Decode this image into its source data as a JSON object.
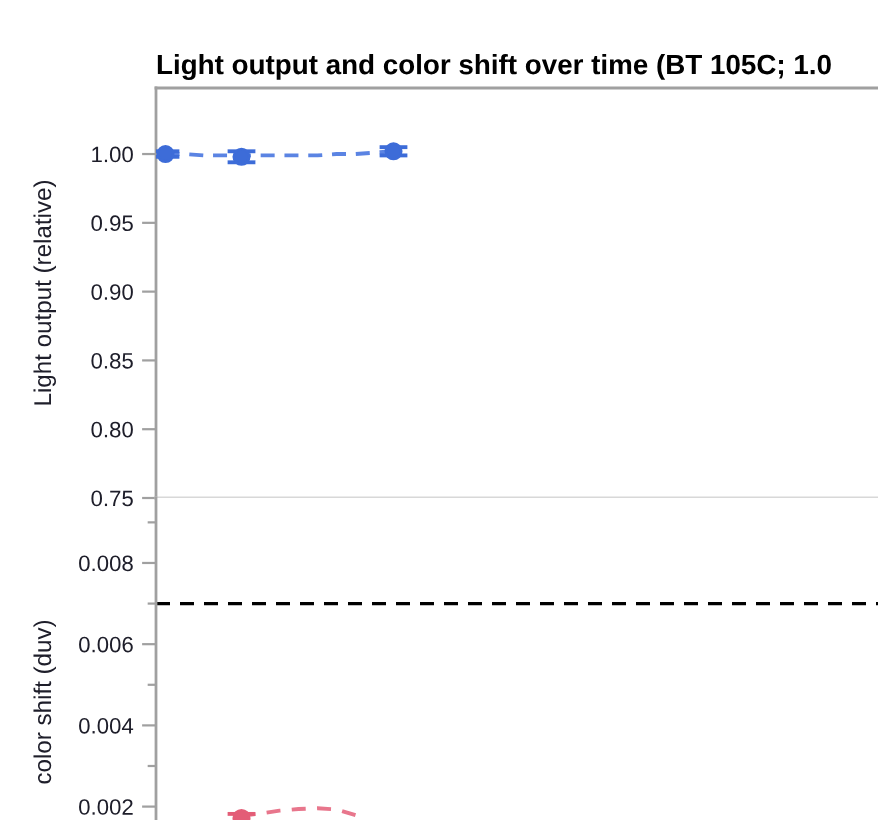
{
  "chart_data": [
    {
      "type": "line",
      "title": "Light output and color shift over time (BT 105C; 1.0",
      "ylabel": "Light output (relative)",
      "categories": [
        null,
        null,
        null,
        null,
        null,
        null,
        null,
        null,
        null,
        null,
        null,
        null,
        null,
        null,
        null,
        null,
        null,
        null,
        null,
        null,
        null,
        null,
        null,
        null,
        null,
        null,
        null,
        null,
        null,
        null,
        null,
        null,
        null,
        null,
        null,
        null,
        null,
        null
      ],
      "ylim": [
        0.75,
        1.048
      ],
      "yticks": [
        {
          "value": 0.75,
          "label": "0.75"
        },
        {
          "value": 0.8,
          "label": "0.80"
        },
        {
          "value": 0.85,
          "label": "0.85"
        },
        {
          "value": 0.9,
          "label": "0.90"
        },
        {
          "value": 0.95,
          "label": "0.95"
        },
        {
          "value": 1.0,
          "label": "1.00"
        }
      ],
      "tick_labels": "y",
      "grid": false,
      "series": [
        {
          "type": "scatter",
          "color": "#3d6cd8",
          "marker": "circle",
          "values": [
            1.0,
            null,
            null,
            null,
            0.998,
            null,
            null,
            null,
            null,
            null,
            null,
            null,
            1.002,
            null,
            null,
            null,
            null,
            null,
            null,
            null,
            null,
            null,
            null,
            null,
            null,
            null,
            null,
            null,
            null,
            null,
            null,
            null,
            null,
            null,
            null,
            null,
            null,
            null
          ],
          "errors": [
            0.002,
            null,
            null,
            null,
            0.004,
            null,
            null,
            null,
            null,
            null,
            null,
            null,
            0.003,
            null,
            null,
            null,
            null,
            null,
            null,
            null,
            null,
            null,
            null,
            null,
            null,
            null,
            null,
            null,
            null,
            null,
            null,
            null,
            null,
            null,
            null,
            null,
            null,
            null
          ]
        },
        {
          "color": "#5b84e3",
          "marker": "none",
          "line_style": "dashed",
          "values": [
            1.0,
            1.0,
            0.999,
            0.999,
            0.999,
            0.999,
            0.999,
            0.999,
            0.999,
            1.0,
            1.0,
            1.001,
            1.002,
            null,
            null,
            null,
            null,
            null,
            null,
            null,
            null,
            null,
            null,
            null,
            null,
            null,
            null,
            null,
            null,
            null,
            null,
            null,
            null,
            null,
            null,
            null,
            null,
            null
          ]
        }
      ]
    },
    {
      "type": "line",
      "ylabel": "color shift (duv)",
      "categories": [
        null,
        null,
        null,
        null,
        null,
        null,
        null,
        null,
        null,
        null,
        null,
        null,
        null,
        null,
        null,
        null,
        null,
        null,
        null,
        null,
        null,
        null,
        null,
        null,
        null,
        null,
        null,
        null,
        null,
        null,
        null,
        null,
        null,
        null,
        null,
        null,
        null,
        null
      ],
      "ylim": [
        0.00167,
        0.0096
      ],
      "yticks": [
        0.002,
        0.004,
        0.006,
        0.008,
        {
          "value": 0.003,
          "label": null
        },
        {
          "value": 0.005,
          "label": null
        },
        {
          "value": 0.007,
          "label": null
        },
        {
          "value": 0.009,
          "label": null
        }
      ],
      "tick_labels": "y",
      "grid": false,
      "ref_lines": [
        {
          "axis": "y",
          "value": 0.007,
          "color": "#000000",
          "line_style": "dashed"
        }
      ],
      "series": [
        {
          "type": "scatter",
          "color": "#e35d77",
          "marker": "circle",
          "values": [
            null,
            null,
            null,
            null,
            0.00172,
            null,
            null,
            null,
            null,
            null,
            null,
            null,
            null,
            null,
            null,
            null,
            null,
            null,
            null,
            null,
            null,
            null,
            null,
            null,
            null,
            null,
            null,
            null,
            null,
            null,
            null,
            null,
            null,
            null,
            null,
            null,
            null,
            null
          ],
          "errors": [
            null,
            null,
            null,
            null,
            0.0001,
            null,
            null,
            null,
            null,
            null,
            null,
            null,
            null,
            null,
            null,
            null,
            null,
            null,
            null,
            null,
            null,
            null,
            null,
            null,
            null,
            null,
            null,
            null,
            null,
            null,
            null,
            null,
            null,
            null,
            null,
            null,
            null,
            null
          ]
        },
        {
          "color": "#e8768c",
          "marker": "none",
          "line_style": "dashed",
          "values": [
            null,
            null,
            null,
            null,
            0.00177,
            0.00183,
            0.0019,
            0.00194,
            0.00196,
            0.00193,
            0.00179,
            null,
            null,
            null,
            null,
            null,
            null,
            null,
            null,
            null,
            null,
            null,
            null,
            null,
            null,
            null,
            null,
            null,
            null,
            null,
            null,
            null,
            null,
            null,
            null,
            null,
            null,
            null
          ]
        }
      ]
    }
  ]
}
